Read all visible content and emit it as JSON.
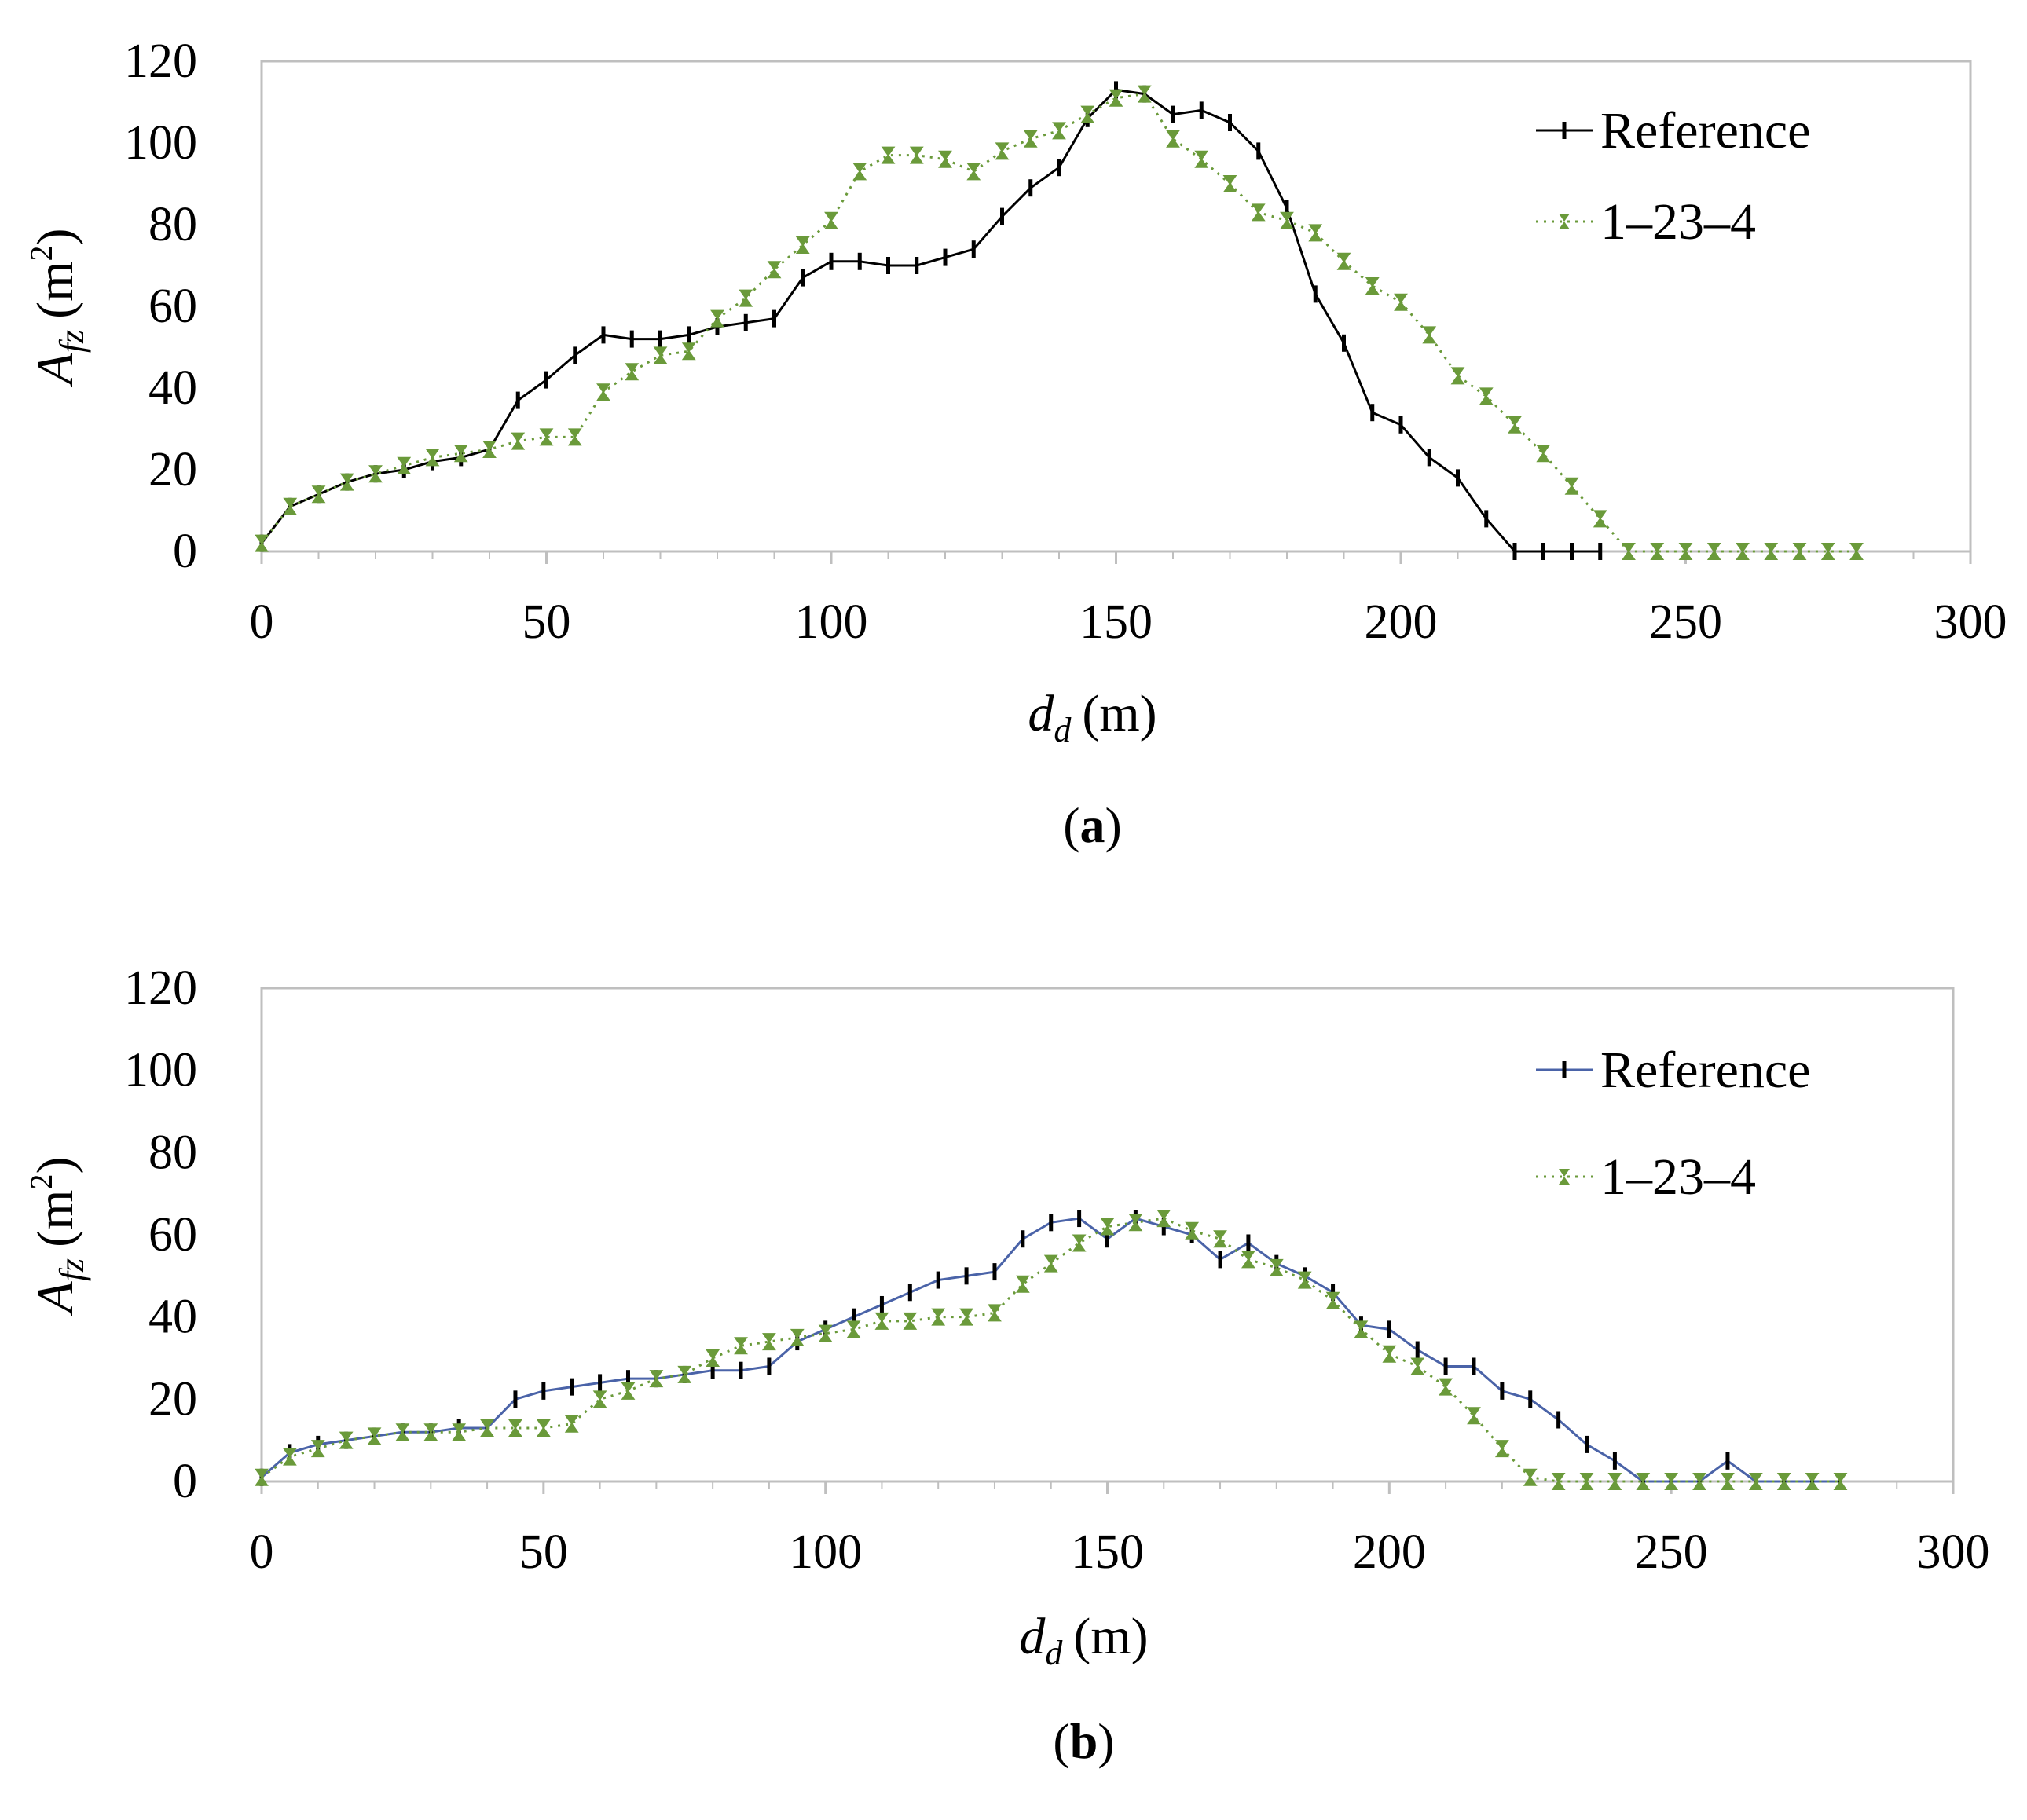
{
  "chart_data": [
    {
      "type": "line",
      "panel_label": "a",
      "xlabel_main": "d",
      "xlabel_sub": "d",
      "xlabel_unit": "(m)",
      "ylabel_main": "A",
      "ylabel_sub": "fz",
      "ylabel_unit": "(m",
      "ylabel_sup": "2",
      "ylabel_close": ")",
      "xlim": [
        0,
        300
      ],
      "ylim": [
        0,
        120
      ],
      "xticks": [
        "0",
        "50",
        "100",
        "150",
        "200",
        "250",
        "300"
      ],
      "yticks": [
        "0",
        "20",
        "40",
        "60",
        "80",
        "100",
        "120"
      ],
      "legend_position": "top-right",
      "series": [
        {
          "name": "Reference",
          "color": "#000000",
          "line_style": "solid",
          "marker": "vertical-bar",
          "x": [
            0,
            5,
            10,
            15,
            20,
            25,
            30,
            35,
            40,
            45,
            50,
            55,
            60,
            65,
            70,
            75,
            80,
            85,
            90,
            95,
            100,
            105,
            110,
            115,
            120,
            125,
            130,
            135,
            140,
            145,
            150,
            155,
            160,
            165,
            170,
            175,
            180,
            185,
            190,
            195,
            200,
            205,
            210,
            215,
            220,
            225,
            230,
            235
          ],
          "values": [
            2,
            11,
            14,
            17,
            19,
            20,
            22,
            23,
            25,
            37,
            42,
            48,
            53,
            52,
            52,
            53,
            55,
            56,
            57,
            67,
            71,
            71,
            70,
            70,
            72,
            74,
            82,
            89,
            94,
            106,
            113,
            112,
            107,
            108,
            105,
            98,
            84,
            63,
            51,
            34,
            31,
            23,
            18,
            8,
            0,
            0,
            0,
            0
          ]
        },
        {
          "name": "1–23–4",
          "color": "#6a9a3a",
          "line_style": "dotted",
          "marker": "bowtie",
          "x": [
            0,
            5,
            10,
            15,
            20,
            25,
            30,
            35,
            40,
            45,
            50,
            55,
            60,
            65,
            70,
            75,
            80,
            85,
            90,
            95,
            100,
            105,
            110,
            115,
            120,
            125,
            130,
            135,
            140,
            145,
            150,
            155,
            160,
            165,
            170,
            175,
            180,
            185,
            190,
            195,
            200,
            205,
            210,
            215,
            220,
            225,
            230,
            235,
            240,
            245,
            250,
            255,
            260,
            265,
            270,
            275,
            280
          ],
          "values": [
            2,
            11,
            14,
            17,
            19,
            21,
            23,
            24,
            25,
            27,
            28,
            28,
            39,
            44,
            48,
            49,
            57,
            62,
            69,
            75,
            81,
            93,
            97,
            97,
            96,
            93,
            98,
            101,
            103,
            107,
            111,
            112,
            101,
            96,
            90,
            83,
            81,
            78,
            71,
            65,
            61,
            53,
            43,
            38,
            31,
            24,
            16,
            8,
            0,
            0,
            0,
            0,
            0,
            0,
            0,
            0,
            0
          ]
        }
      ]
    },
    {
      "type": "line",
      "panel_label": "b",
      "xlabel_main": "d",
      "xlabel_sub": "d",
      "xlabel_unit": "(m)",
      "ylabel_main": "A",
      "ylabel_sub": "fz",
      "ylabel_unit": "(m",
      "ylabel_sup": "2",
      "ylabel_close": ")",
      "xlim": [
        0,
        300
      ],
      "ylim": [
        0,
        120
      ],
      "xticks": [
        "0",
        "50",
        "100",
        "150",
        "200",
        "250",
        "300"
      ],
      "yticks": [
        "0",
        "20",
        "40",
        "60",
        "80",
        "100",
        "120"
      ],
      "legend_position": "top-right",
      "series": [
        {
          "name": "Reference",
          "color": "#4a63a8",
          "marker_color": "#000000",
          "line_style": "solid",
          "marker": "vertical-bar",
          "x": [
            0,
            5,
            10,
            15,
            20,
            25,
            30,
            35,
            40,
            45,
            50,
            55,
            60,
            65,
            70,
            75,
            80,
            85,
            90,
            95,
            100,
            105,
            110,
            115,
            120,
            125,
            130,
            135,
            140,
            145,
            150,
            155,
            160,
            165,
            170,
            175,
            180,
            185,
            190,
            195,
            200,
            205,
            210,
            215,
            220,
            225,
            230,
            235,
            240,
            245,
            250,
            255,
            260,
            265,
            270,
            275,
            280
          ],
          "values": [
            1,
            7,
            9,
            10,
            11,
            12,
            12,
            13,
            13,
            20,
            22,
            23,
            24,
            25,
            25,
            26,
            27,
            27,
            28,
            34,
            37,
            40,
            43,
            46,
            49,
            50,
            51,
            59,
            63,
            64,
            59,
            64,
            62,
            60,
            54,
            58,
            53,
            50,
            46,
            38,
            37,
            32,
            28,
            28,
            22,
            20,
            15,
            9,
            5,
            0,
            0,
            0,
            5,
            0,
            0,
            0,
            0
          ]
        },
        {
          "name": "1–23–4",
          "color": "#6a9a3a",
          "line_style": "dotted",
          "marker": "bowtie",
          "x": [
            0,
            5,
            10,
            15,
            20,
            25,
            30,
            35,
            40,
            45,
            50,
            55,
            60,
            65,
            70,
            75,
            80,
            85,
            90,
            95,
            100,
            105,
            110,
            115,
            120,
            125,
            130,
            135,
            140,
            145,
            150,
            155,
            160,
            165,
            170,
            175,
            180,
            185,
            190,
            195,
            200,
            205,
            210,
            215,
            220,
            225,
            230,
            235,
            240,
            245,
            250,
            255,
            260,
            265,
            270,
            275,
            280
          ],
          "values": [
            1,
            6,
            8,
            10,
            11,
            12,
            12,
            12,
            13,
            13,
            13,
            14,
            20,
            22,
            25,
            26,
            30,
            33,
            34,
            35,
            36,
            37,
            39,
            39,
            40,
            40,
            41,
            48,
            53,
            58,
            62,
            63,
            64,
            61,
            59,
            54,
            52,
            49,
            44,
            37,
            31,
            28,
            23,
            16,
            8,
            1,
            0,
            0,
            0,
            0,
            0,
            0,
            0,
            0,
            0,
            0,
            0
          ]
        }
      ]
    }
  ]
}
